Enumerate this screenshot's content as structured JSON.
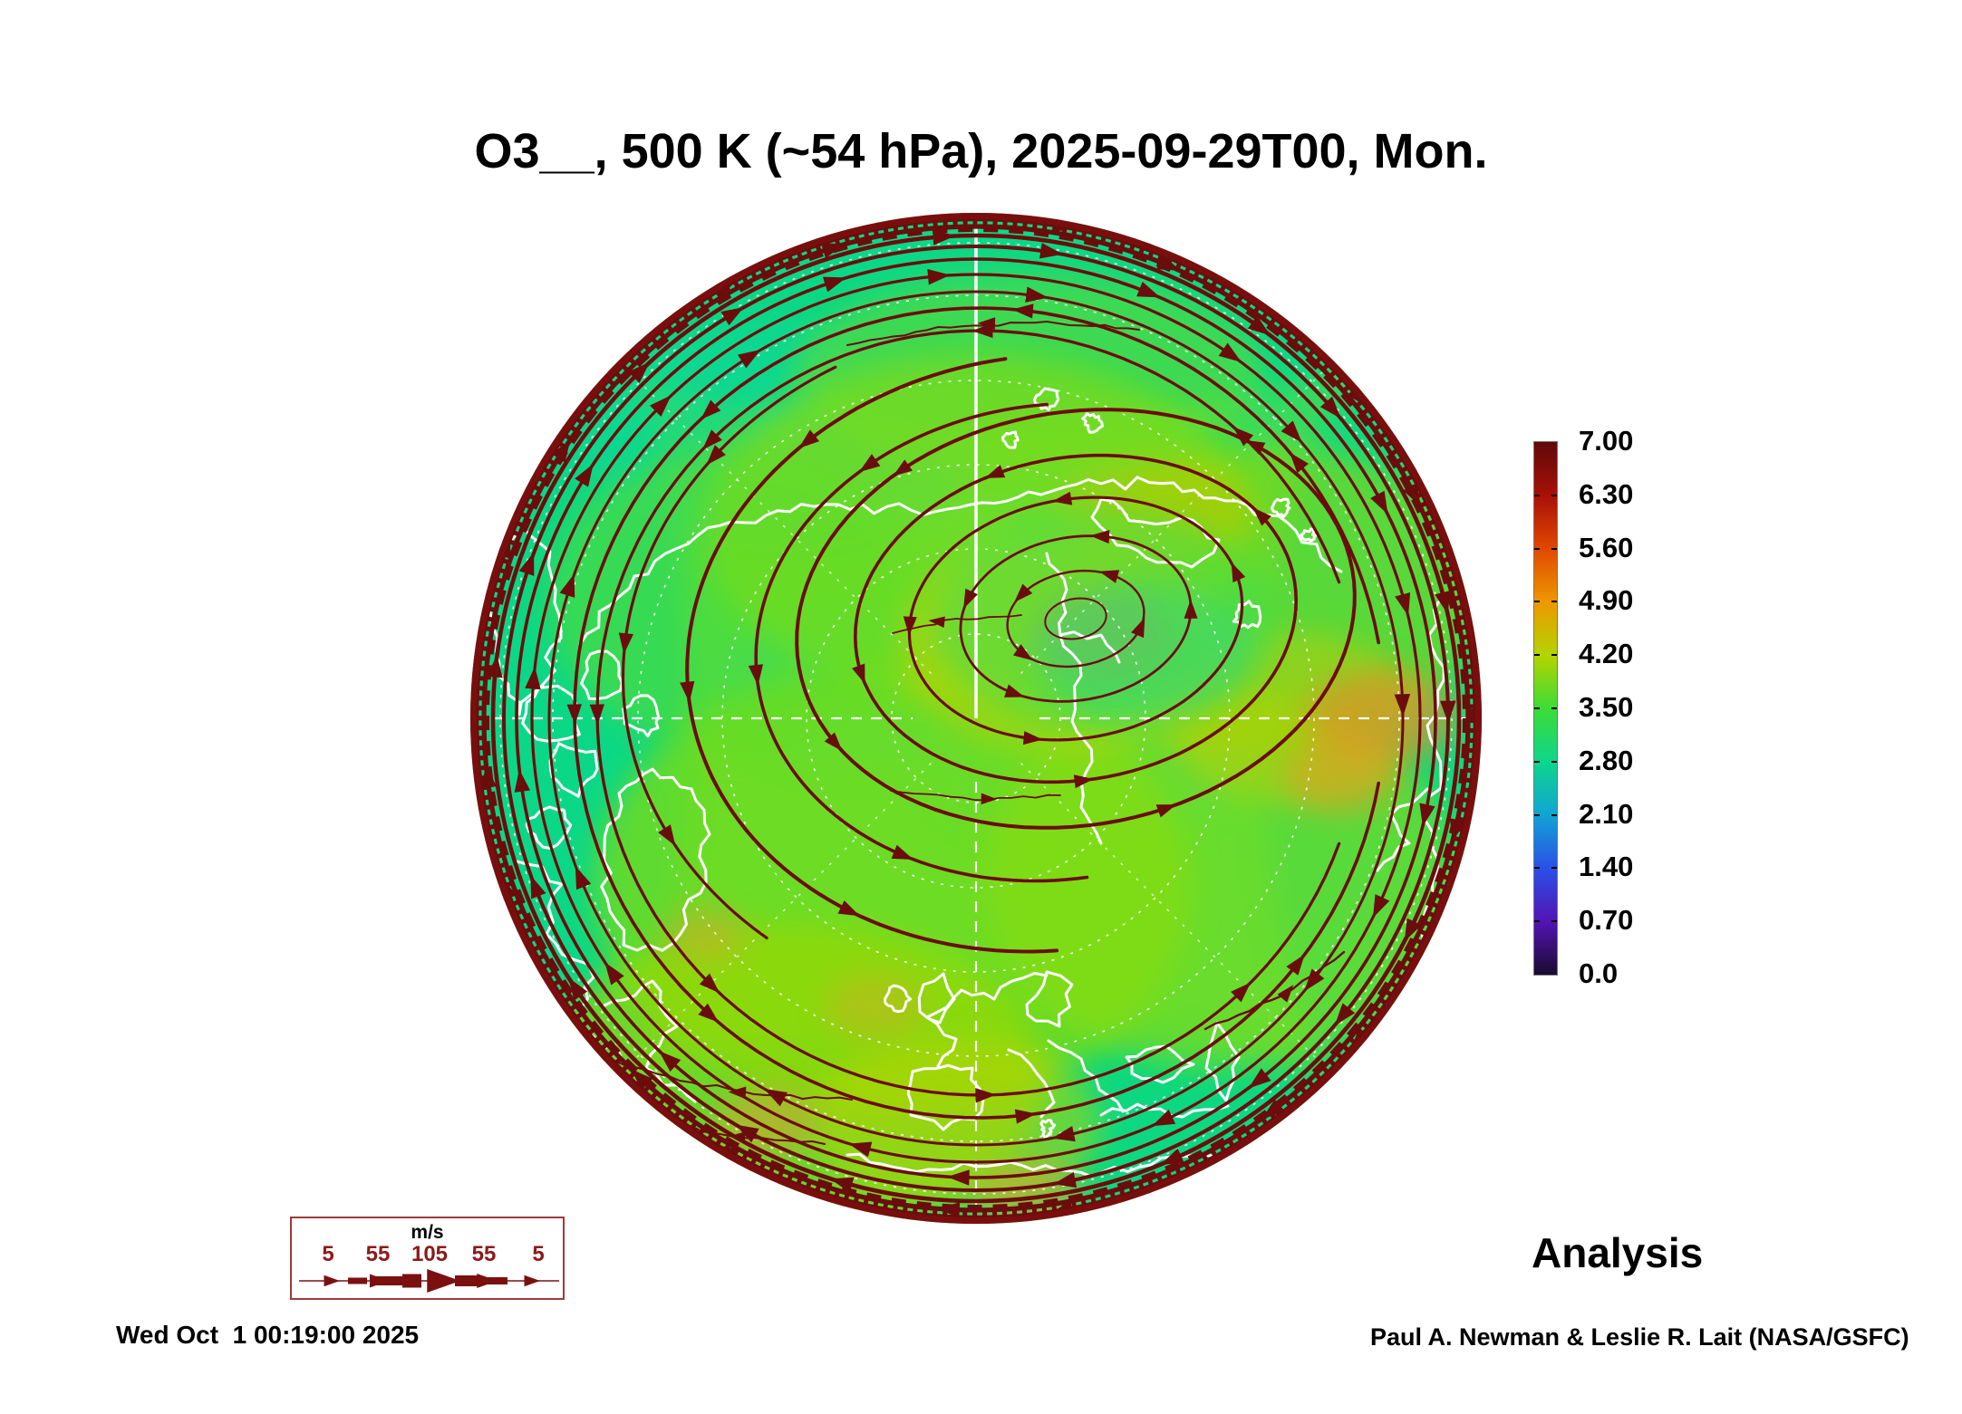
{
  "title": "O3__, 500 K (~54 hPa), 2025-09-29T00, Mon.",
  "colorbar": {
    "ticks_top_to_bottom": [
      "7.00",
      "6.30",
      "5.60",
      "4.90",
      "4.20",
      "3.50",
      "2.80",
      "2.10",
      "1.40",
      "0.70",
      "0.0"
    ],
    "colors_bottom_to_top": [
      "#1C0A30",
      "#5214B4",
      "#2A50E8",
      "#10A4D4",
      "#0ED68C",
      "#3CDC34",
      "#B4D400",
      "#EE9800",
      "#E04800",
      "#A81008",
      "#600909"
    ]
  },
  "wind_legend": {
    "units": "m/s",
    "speed_labels": [
      "5",
      "55",
      "105",
      "55",
      "5"
    ],
    "label_color": "#8B1A1A",
    "arrow_color": "#7A1010",
    "border_color": "#9E3A3A"
  },
  "map": {
    "base_color": "#38DC5E",
    "streamline_color": "#6B0D0D",
    "rim_color": "#7A0E0E",
    "coastline_color": "#FFFFFF",
    "graticule_color": "#FFFFFF"
  },
  "footer": {
    "timestamp": "Wed Oct  1 00:19:00 2025",
    "mode_label": "Analysis",
    "credit": "Paul A. Newman & Leslie R. Lait (NASA/GSFC)"
  },
  "chart_data": {
    "type": "heatmap",
    "title": "O3__, 500 K (~54 hPa), 2025-09-29T00, Mon.",
    "variable": "O3",
    "level": "500 K (~54 hPa)",
    "valid_time": "2025-09-29T00",
    "valid_day": "Mon.",
    "projection": "north polar stereographic",
    "colorbar": {
      "ticks": [
        7.0,
        6.3,
        5.6,
        4.9,
        4.2,
        3.5,
        2.8,
        2.1,
        1.4,
        0.7,
        0.0
      ],
      "range": [
        0.0,
        7.0
      ],
      "position": "right"
    },
    "wind_units": "m/s",
    "wind_scale_mps": [
      5,
      55,
      105,
      55,
      5
    ],
    "overlays": [
      "wind streamlines",
      "coastlines",
      "lat-lon graticule"
    ],
    "field_summary": "Ozone mostly 2.8-4.2 (green to yellow-green) over the polar cap, teal ~2.1-2.8 band near the disc edge, scattered orange ~4.9 patches; dense dark-red easterly streamline ring at the outer boundary and a closed counterclockwise vortex circulation centered off the pole.",
    "annotations": [
      "Analysis",
      "Wed Oct  1 00:19:00 2025",
      "Paul A. Newman & Leslie R. Lait (NASA/GSFC)"
    ]
  }
}
